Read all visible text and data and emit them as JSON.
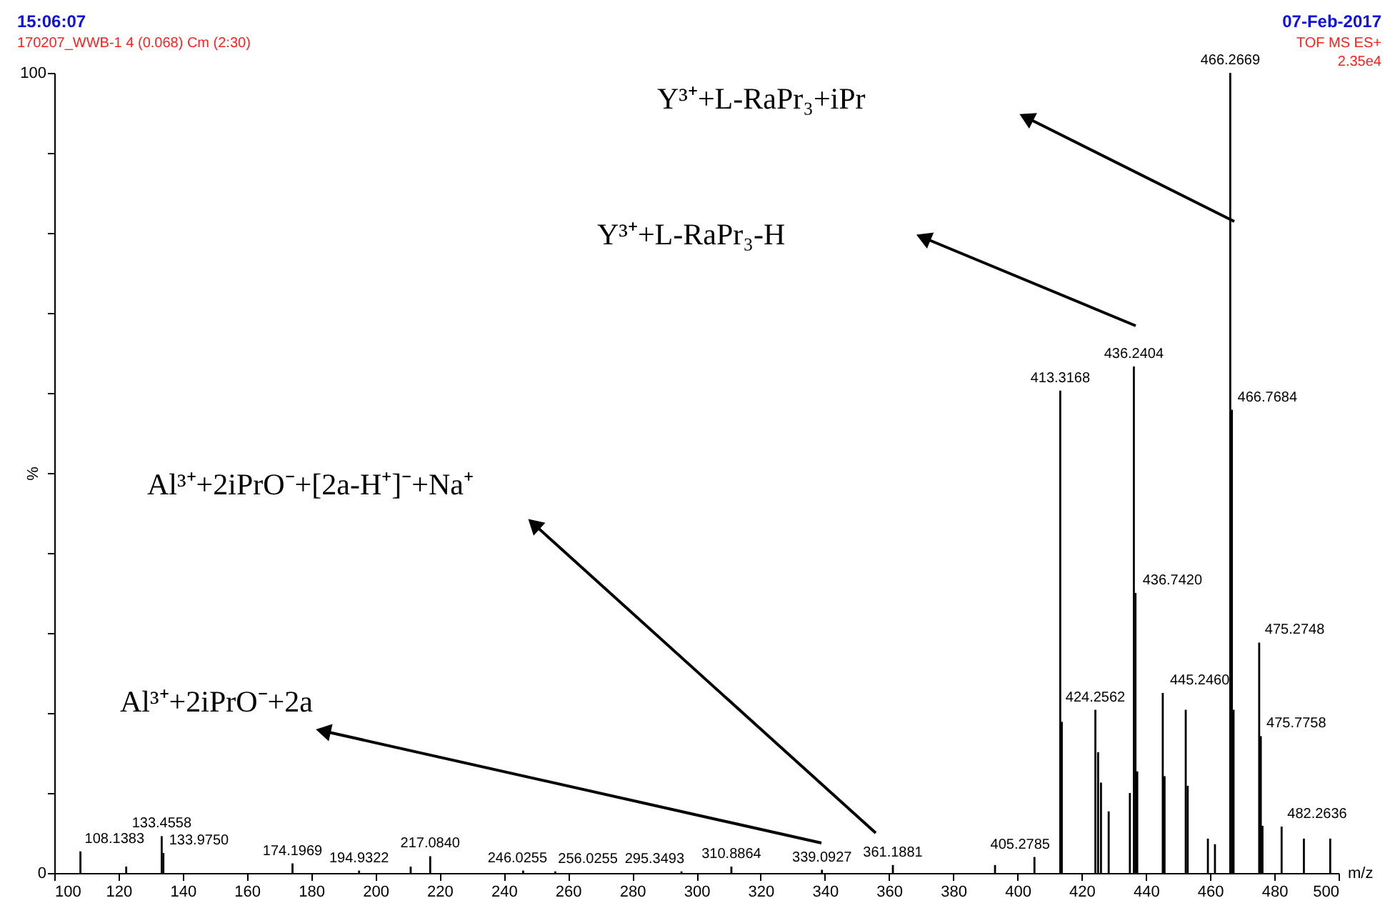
{
  "chart_data": {
    "type": "bar",
    "xlabel": "m/z",
    "ylabel": "%",
    "color": "#000000",
    "grid": false,
    "xlim": [
      100,
      500
    ],
    "xticks": [
      100,
      120,
      140,
      160,
      180,
      200,
      220,
      240,
      260,
      280,
      300,
      320,
      340,
      360,
      380,
      400,
      420,
      440,
      460,
      480,
      500
    ],
    "ylim": [
      0,
      100
    ],
    "yticks": [
      0,
      {
        "value": 10,
        "label": null
      },
      {
        "value": 20,
        "label": null
      },
      {
        "value": 30,
        "label": null
      },
      {
        "value": 40,
        "label": null
      },
      {
        "value": 50,
        "label": null
      },
      {
        "value": 60,
        "label": null
      },
      {
        "value": 70,
        "label": null
      },
      {
        "value": 80,
        "label": null
      },
      {
        "value": 90,
        "label": null
      },
      100
    ],
    "x": [
      108.1383,
      122.4,
      133.4558,
      133.975,
      174.1969,
      194.9322,
      211,
      217.084,
      246.0255,
      256.0255,
      295.3493,
      310.8864,
      339.0927,
      361.1881,
      393,
      405.2785,
      413.3168,
      413.8,
      424.2562,
      425.1,
      426,
      428.4,
      435,
      436.2404,
      436.742,
      437.3,
      445.246,
      445.8,
      452.4,
      453,
      459.3,
      461.5,
      466.2669,
      466.7684,
      467.3,
      475.2748,
      475.7758,
      476.3,
      482.2636,
      489.2,
      497.4
    ],
    "values": [
      2.7,
      0.8,
      4.6,
      2.5,
      1.2,
      0.3,
      0.8,
      2.1,
      0.3,
      0.2,
      0.2,
      0.8,
      0.4,
      1.0,
      1.0,
      2.0,
      60.3,
      18.9,
      20.4,
      15.1,
      11.3,
      7.7,
      10,
      63.3,
      35.0,
      12.7,
      22.5,
      12.1,
      20.4,
      10.9,
      4.3,
      3.6,
      100,
      57.9,
      20.4,
      28.8,
      17.1,
      5.9,
      5.8,
      4.3,
      4.3
    ],
    "annotations": [
      "15:06:07",
      "170207_WWB-1 4 (0.068) Cm (2:30)",
      "07-Feb-2017",
      "TOF MS ES+",
      "2.35e4",
      "Y³⁺+L-RaPr₃+iPr",
      "Y³⁺+L-RaPr₃-H",
      "Al³⁺+2iPrO⁻+[2a-H⁺]⁻+Na⁺",
      "Al³⁺+2iPrO⁻+2a",
      {
        "text": "108.1383",
        "x": 108.1383,
        "y": 2.7
      },
      {
        "text": "133.4558",
        "x": 133.4558,
        "y": 4.6
      },
      {
        "text": "133.9750",
        "x": 133.975,
        "y": 2.5
      },
      {
        "text": "174.1969",
        "x": 174.1969,
        "y": 1.2
      },
      {
        "text": "194.9322",
        "x": 194.9322,
        "y": 0.3
      },
      {
        "text": "217.0840",
        "x": 217.084,
        "y": 2.1
      },
      {
        "text": "246.0255",
        "x": 246.0255,
        "y": 0.3
      },
      {
        "text": "256.0255",
        "x": 256.0255,
        "y": 0.2
      },
      {
        "text": "295.3493",
        "x": 295.3493,
        "y": 0.2
      },
      {
        "text": "310.8864",
        "x": 310.8864,
        "y": 0.8
      },
      {
        "text": "339.0927",
        "x": 339.0927,
        "y": 0.4
      },
      {
        "text": "361.1881",
        "x": 361.1881,
        "y": 1.0
      },
      {
        "text": "405.2785",
        "x": 405.2785,
        "y": 2.0
      },
      {
        "text": "413.3168",
        "x": 413.3168,
        "y": 60.3
      },
      {
        "text": "424.2562",
        "x": 424.2562,
        "y": 20.4
      },
      {
        "text": "436.2404",
        "x": 436.2404,
        "y": 63.3
      },
      {
        "text": "436.7420",
        "x": 436.742,
        "y": 35.0
      },
      {
        "text": "445.2460",
        "x": 445.246,
        "y": 22.5
      },
      {
        "text": "466.2669",
        "x": 466.2669,
        "y": 100
      },
      {
        "text": "466.7684",
        "x": 466.7684,
        "y": 57.9
      },
      {
        "text": "475.2748",
        "x": 475.2748,
        "y": 28.8
      },
      {
        "text": "475.7758",
        "x": 475.7758,
        "y": 17.1
      },
      {
        "text": "482.2636",
        "x": 482.2636,
        "y": 5.8
      }
    ]
  }
}
